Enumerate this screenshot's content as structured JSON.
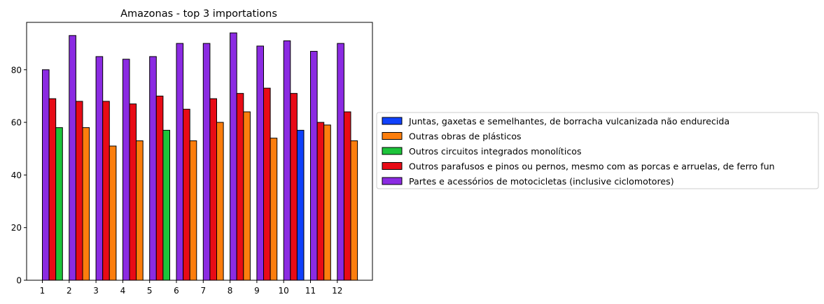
{
  "chart_data": {
    "type": "bar",
    "title": "Amazonas - top 3 importations",
    "xlabel": "",
    "ylabel": "",
    "categories": [
      "1",
      "2",
      "3",
      "4",
      "5",
      "6",
      "7",
      "8",
      "9",
      "10",
      "11",
      "12"
    ],
    "ylim": [
      0,
      98
    ],
    "yticks": [
      0,
      20,
      40,
      60,
      80
    ],
    "grid": false,
    "legend_position": "right-outside",
    "bars": [
      {
        "month": "1",
        "items": [
          {
            "series": "Partes e acessórios de motocicletas (inclusive ciclomotores)",
            "value": 80
          },
          {
            "series": "Outros parafusos e pinos ou pernos, mesmo com as porcas e arruelas, de ferro fun",
            "value": 69
          },
          {
            "series": "Outros circuitos integrados monolíticos",
            "value": 58
          }
        ]
      },
      {
        "month": "2",
        "items": [
          {
            "series": "Partes e acessórios de motocicletas (inclusive ciclomotores)",
            "value": 93
          },
          {
            "series": "Outros parafusos e pinos ou pernos, mesmo com as porcas e arruelas, de ferro fun",
            "value": 68
          },
          {
            "series": "Outras obras de plásticos",
            "value": 58
          }
        ]
      },
      {
        "month": "3",
        "items": [
          {
            "series": "Partes e acessórios de motocicletas (inclusive ciclomotores)",
            "value": 85
          },
          {
            "series": "Outros parafusos e pinos ou pernos, mesmo com as porcas e arruelas, de ferro fun",
            "value": 68
          },
          {
            "series": "Outras obras de plásticos",
            "value": 51
          }
        ]
      },
      {
        "month": "4",
        "items": [
          {
            "series": "Partes e acessórios de motocicletas (inclusive ciclomotores)",
            "value": 84
          },
          {
            "series": "Outros parafusos e pinos ou pernos, mesmo com as porcas e arruelas, de ferro fun",
            "value": 67
          },
          {
            "series": "Outras obras de plásticos",
            "value": 53
          }
        ]
      },
      {
        "month": "5",
        "items": [
          {
            "series": "Partes e acessórios de motocicletas (inclusive ciclomotores)",
            "value": 85
          },
          {
            "series": "Outros parafusos e pinos ou pernos, mesmo com as porcas e arruelas, de ferro fun",
            "value": 70
          },
          {
            "series": "Outros circuitos integrados monolíticos",
            "value": 57
          }
        ]
      },
      {
        "month": "6",
        "items": [
          {
            "series": "Partes e acessórios de motocicletas (inclusive ciclomotores)",
            "value": 90
          },
          {
            "series": "Outros parafusos e pinos ou pernos, mesmo com as porcas e arruelas, de ferro fun",
            "value": 65
          },
          {
            "series": "Outras obras de plásticos",
            "value": 53
          }
        ]
      },
      {
        "month": "7",
        "items": [
          {
            "series": "Partes e acessórios de motocicletas (inclusive ciclomotores)",
            "value": 90
          },
          {
            "series": "Outros parafusos e pinos ou pernos, mesmo com as porcas e arruelas, de ferro fun",
            "value": 69
          },
          {
            "series": "Outras obras de plásticos",
            "value": 60
          }
        ]
      },
      {
        "month": "8",
        "items": [
          {
            "series": "Partes e acessórios de motocicletas (inclusive ciclomotores)",
            "value": 94
          },
          {
            "series": "Outros parafusos e pinos ou pernos, mesmo com as porcas e arruelas, de ferro fun",
            "value": 71
          },
          {
            "series": "Outras obras de plásticos",
            "value": 64
          }
        ]
      },
      {
        "month": "9",
        "items": [
          {
            "series": "Partes e acessórios de motocicletas (inclusive ciclomotores)",
            "value": 89
          },
          {
            "series": "Outros parafusos e pinos ou pernos, mesmo com as porcas e arruelas, de ferro fun",
            "value": 73
          },
          {
            "series": "Outras obras de plásticos",
            "value": 54
          }
        ]
      },
      {
        "month": "10",
        "items": [
          {
            "series": "Partes e acessórios de motocicletas (inclusive ciclomotores)",
            "value": 91
          },
          {
            "series": "Outros parafusos e pinos ou pernos, mesmo com as porcas e arruelas, de ferro fun",
            "value": 71
          },
          {
            "series": "Juntas, gaxetas e semelhantes, de borracha vulcanizada não endurecida",
            "value": 57
          }
        ]
      },
      {
        "month": "11",
        "items": [
          {
            "series": "Partes e acessórios de motocicletas (inclusive ciclomotores)",
            "value": 87
          },
          {
            "series": "Outros parafusos e pinos ou pernos, mesmo com as porcas e arruelas, de ferro fun",
            "value": 60
          },
          {
            "series": "Outras obras de plásticos",
            "value": 59
          }
        ]
      },
      {
        "month": "12",
        "items": [
          {
            "series": "Partes e acessórios de motocicletas (inclusive ciclomotores)",
            "value": 90
          },
          {
            "series": "Outros parafusos e pinos ou pernos, mesmo com as porcas e arruelas, de ferro fun",
            "value": 64
          },
          {
            "series": "Outras obras de plásticos",
            "value": 53
          }
        ]
      }
    ],
    "legend": [
      {
        "name": "Juntas, gaxetas e semelhantes, de borracha vulcanizada não endurecida",
        "color": "#1041fb"
      },
      {
        "name": "Outras obras de plásticos",
        "color": "#fc7e0d"
      },
      {
        "name": "Outros circuitos integrados monolíticos",
        "color": "#1dc43a"
      },
      {
        "name": "Outros parafusos e pinos ou pernos, mesmo com as porcas e arruelas, de ferro fun",
        "color": "#e80b16"
      },
      {
        "name": "Partes e acessórios de motocicletas (inclusive ciclomotores)",
        "color": "#8b2be2"
      }
    ]
  }
}
